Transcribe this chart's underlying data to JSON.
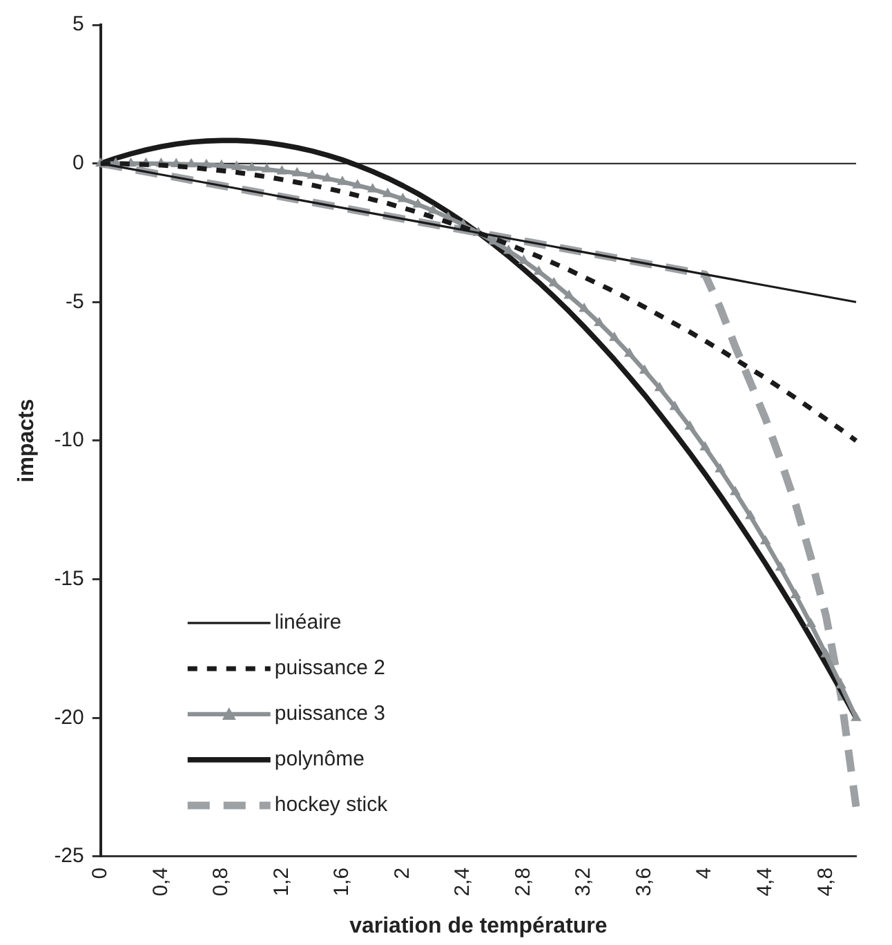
{
  "chart_data": {
    "type": "line",
    "xlabel": "variation de température",
    "ylabel": "impacts",
    "categories": [
      "0",
      null,
      null,
      null,
      "0,4",
      null,
      null,
      null,
      "0,8",
      null,
      null,
      null,
      "1,2",
      null,
      null,
      null,
      "1,6",
      null,
      null,
      null,
      "2",
      null,
      null,
      null,
      "2,4",
      null,
      null,
      null,
      "2,8",
      null,
      null,
      null,
      "3,2",
      null,
      null,
      null,
      "3,6",
      null,
      null,
      null,
      "4",
      null,
      null,
      null,
      "4,4",
      null,
      null,
      null,
      "4,8",
      null,
      null
    ],
    "ylim": [
      -25,
      5
    ],
    "yticks": [
      -25,
      -20,
      -15,
      -10,
      -5,
      0,
      5
    ],
    "grid": false,
    "legend": "bottom left",
    "marker": "none",
    "ref_lines": [
      {
        "axis": "y",
        "value": 0,
        "color": "#1a1a1a"
      }
    ],
    "series": [
      {
        "name": "linéaire",
        "color": "#1a1a1a",
        "line_style": "solid",
        "values": [
          0,
          -0.1,
          -0.2,
          -0.3,
          -0.4,
          -0.5,
          -0.6,
          -0.7,
          -0.8,
          -0.9,
          -1,
          -1.1,
          -1.2,
          -1.3,
          -1.4,
          -1.5,
          -1.6,
          -1.7,
          -1.8,
          -1.9,
          -2,
          -2.1,
          -2.2,
          -2.3,
          -2.4,
          -2.5,
          -2.6,
          -2.7,
          -2.8,
          -2.9,
          -3,
          -3.1,
          -3.2,
          -3.3,
          -3.4,
          -3.5,
          -3.6,
          -3.7,
          -3.8,
          -3.9,
          -4,
          -4.1,
          -4.2,
          -4.3,
          -4.4,
          -4.5,
          -4.6,
          -4.7,
          -4.8,
          -4.9,
          -5
        ]
      },
      {
        "name": "puissance 2",
        "color": "#1a1a1a",
        "line_style": "dashed",
        "values": [
          0,
          0,
          -0.02,
          -0.04,
          -0.06,
          -0.1,
          -0.14,
          -0.2,
          -0.26,
          -0.32,
          -0.4,
          -0.48,
          -0.58,
          -0.68,
          -0.78,
          -0.9,
          -1.02,
          -1.16,
          -1.3,
          -1.44,
          -1.6,
          -1.76,
          -1.94,
          -2.12,
          -2.3,
          -2.5,
          -2.7,
          -2.92,
          -3.14,
          -3.36,
          -3.6,
          -3.84,
          -4.1,
          -4.36,
          -4.62,
          -4.9,
          -5.18,
          -5.48,
          -5.78,
          -6.08,
          -6.4,
          -6.72,
          -7.06,
          -7.4,
          -7.74,
          -8.1,
          -8.46,
          -8.84,
          -9.22,
          -9.6,
          -10
        ]
      },
      {
        "name": "puissance 3",
        "color": "#8c9194",
        "line_style": "solid",
        "marker": "triangle",
        "values": [
          0,
          0,
          0,
          0,
          -0.01,
          -0.02,
          -0.03,
          -0.05,
          -0.08,
          -0.12,
          -0.16,
          -0.21,
          -0.28,
          -0.35,
          -0.44,
          -0.54,
          -0.66,
          -0.79,
          -0.93,
          -1.1,
          -1.28,
          -1.48,
          -1.7,
          -1.95,
          -2.21,
          -2.5,
          -2.81,
          -3.15,
          -3.51,
          -3.9,
          -4.32,
          -4.77,
          -5.24,
          -5.75,
          -6.29,
          -6.86,
          -7.47,
          -8.1,
          -8.78,
          -9.49,
          -10.24,
          -11.03,
          -11.85,
          -12.72,
          -13.63,
          -14.58,
          -15.57,
          -16.61,
          -17.7,
          -18.82,
          -20
        ]
      },
      {
        "name": "polynôme",
        "color": "#1a1a1a",
        "line_style": "solid",
        "values": [
          0,
          0.19,
          0.35,
          0.49,
          0.61,
          0.7,
          0.77,
          0.81,
          0.83,
          0.83,
          0.8,
          0.75,
          0.67,
          0.57,
          0.45,
          0.3,
          0.13,
          -0.07,
          -0.29,
          -0.53,
          -0.8,
          -1.09,
          -1.41,
          -1.75,
          -2.11,
          -2.5,
          -2.91,
          -3.35,
          -3.81,
          -4.29,
          -4.8,
          -5.33,
          -5.89,
          -6.47,
          -7.07,
          -7.7,
          -8.35,
          -9.03,
          -9.73,
          -10.45,
          -11.2,
          -11.97,
          -12.77,
          -13.59,
          -14.43,
          -15.3,
          -16.19,
          -17.11,
          -18.05,
          -19.01,
          -20
        ]
      },
      {
        "name": "hockey stick",
        "color": "#9da1a4",
        "line_style": "dashed",
        "values": [
          0,
          -0.1,
          -0.2,
          -0.3,
          -0.4,
          -0.5,
          -0.6,
          -0.7,
          -0.8,
          -0.9,
          -1,
          -1.1,
          -1.2,
          -1.3,
          -1.4,
          -1.5,
          -1.6,
          -1.7,
          -1.8,
          -1.9,
          -2,
          -2.1,
          -2.2,
          -2.3,
          -2.4,
          -2.5,
          -2.6,
          -2.7,
          -2.8,
          -2.9,
          -3,
          -3.1,
          -3.2,
          -3.3,
          -3.4,
          -3.5,
          -3.6,
          -3.7,
          -3.8,
          -3.9,
          -4,
          -5.2,
          -6.6,
          -7.9,
          -9.2,
          -10.7,
          -12.3,
          -14.2,
          -16.3,
          -19.2,
          -23.2
        ]
      }
    ]
  }
}
